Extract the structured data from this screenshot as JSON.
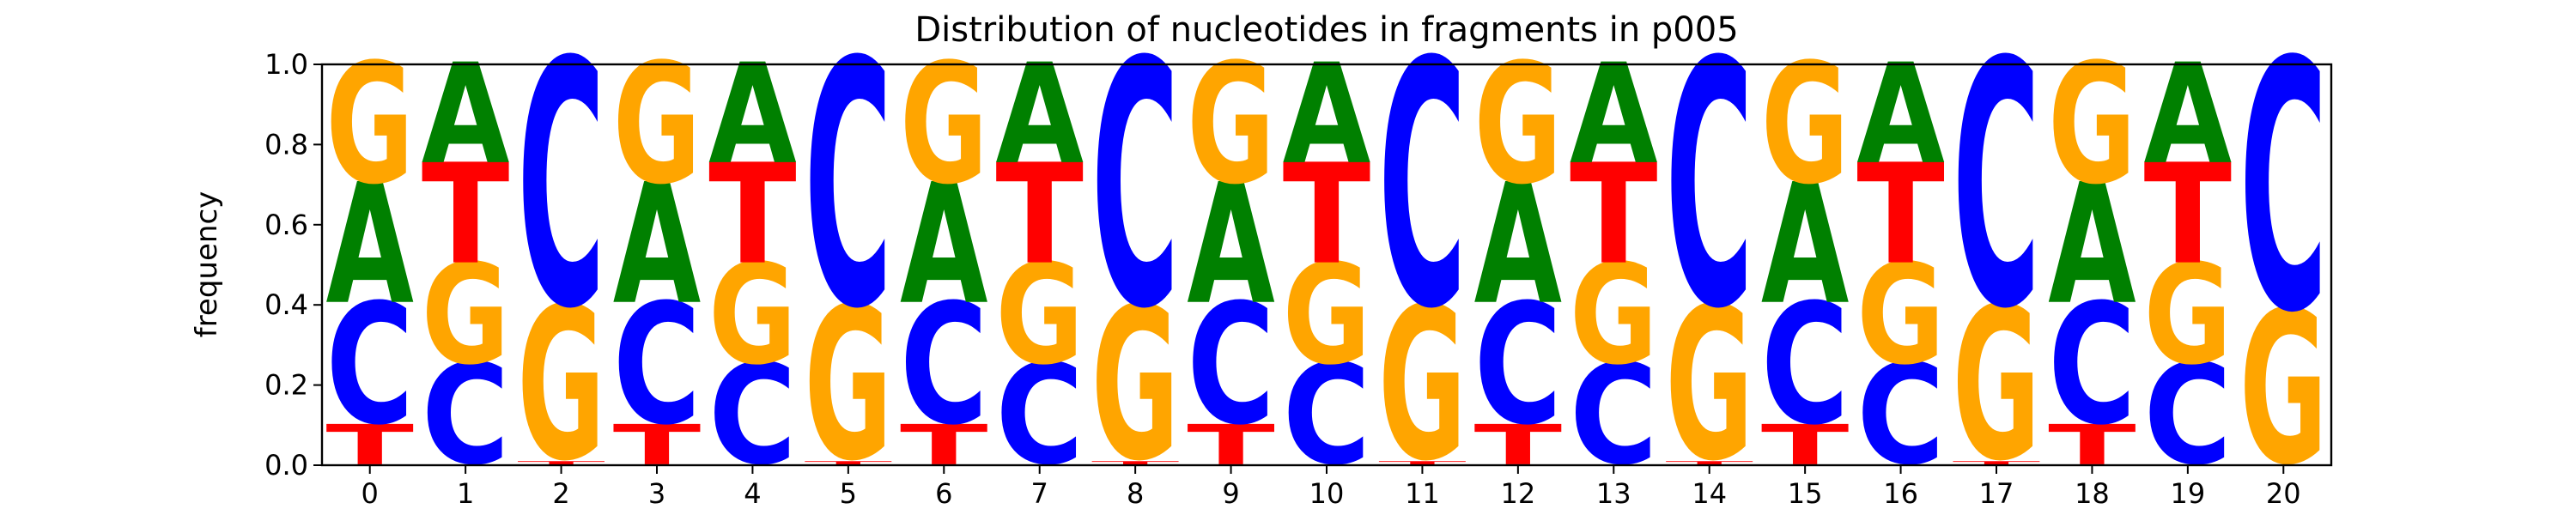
{
  "chart_data": {
    "type": "sequence-logo",
    "title": "Distribution of nucleotides in fragments in p005",
    "xlabel": "",
    "ylabel": "frequency",
    "ylim": [
      0,
      1
    ],
    "yticks": [
      "0.0",
      "0.2",
      "0.4",
      "0.6",
      "0.8",
      "1.0"
    ],
    "positions": [
      "0",
      "1",
      "2",
      "3",
      "4",
      "5",
      "6",
      "7",
      "8",
      "9",
      "10",
      "11",
      "12",
      "13",
      "14",
      "15",
      "16",
      "17",
      "18",
      "19",
      "20"
    ],
    "colors": {
      "A": "#008000",
      "C": "#0000ff",
      "G": "#ffa500",
      "T": "#ff0000"
    },
    "stacks": [
      [
        {
          "base": "T",
          "freq": 0.1
        },
        {
          "base": "C",
          "freq": 0.3
        },
        {
          "base": "A",
          "freq": 0.3
        },
        {
          "base": "G",
          "freq": 0.3
        }
      ],
      [
        {
          "base": "C",
          "freq": 0.25
        },
        {
          "base": "G",
          "freq": 0.25
        },
        {
          "base": "T",
          "freq": 0.25
        },
        {
          "base": "A",
          "freq": 0.25
        }
      ],
      [
        {
          "base": "T",
          "freq": 0.01
        },
        {
          "base": "G",
          "freq": 0.38
        },
        {
          "base": "C",
          "freq": 0.61
        }
      ],
      [
        {
          "base": "T",
          "freq": 0.1
        },
        {
          "base": "C",
          "freq": 0.3
        },
        {
          "base": "A",
          "freq": 0.3
        },
        {
          "base": "G",
          "freq": 0.3
        }
      ],
      [
        {
          "base": "C",
          "freq": 0.25
        },
        {
          "base": "G",
          "freq": 0.25
        },
        {
          "base": "T",
          "freq": 0.25
        },
        {
          "base": "A",
          "freq": 0.25
        }
      ],
      [
        {
          "base": "T",
          "freq": 0.01
        },
        {
          "base": "G",
          "freq": 0.38
        },
        {
          "base": "C",
          "freq": 0.61
        }
      ],
      [
        {
          "base": "T",
          "freq": 0.1
        },
        {
          "base": "C",
          "freq": 0.3
        },
        {
          "base": "A",
          "freq": 0.3
        },
        {
          "base": "G",
          "freq": 0.3
        }
      ],
      [
        {
          "base": "C",
          "freq": 0.25
        },
        {
          "base": "G",
          "freq": 0.25
        },
        {
          "base": "T",
          "freq": 0.25
        },
        {
          "base": "A",
          "freq": 0.25
        }
      ],
      [
        {
          "base": "T",
          "freq": 0.01
        },
        {
          "base": "G",
          "freq": 0.38
        },
        {
          "base": "C",
          "freq": 0.61
        }
      ],
      [
        {
          "base": "T",
          "freq": 0.1
        },
        {
          "base": "C",
          "freq": 0.3
        },
        {
          "base": "A",
          "freq": 0.3
        },
        {
          "base": "G",
          "freq": 0.3
        }
      ],
      [
        {
          "base": "C",
          "freq": 0.25
        },
        {
          "base": "G",
          "freq": 0.25
        },
        {
          "base": "T",
          "freq": 0.25
        },
        {
          "base": "A",
          "freq": 0.25
        }
      ],
      [
        {
          "base": "T",
          "freq": 0.01
        },
        {
          "base": "G",
          "freq": 0.38
        },
        {
          "base": "C",
          "freq": 0.61
        }
      ],
      [
        {
          "base": "T",
          "freq": 0.1
        },
        {
          "base": "C",
          "freq": 0.3
        },
        {
          "base": "A",
          "freq": 0.3
        },
        {
          "base": "G",
          "freq": 0.3
        }
      ],
      [
        {
          "base": "C",
          "freq": 0.25
        },
        {
          "base": "G",
          "freq": 0.25
        },
        {
          "base": "T",
          "freq": 0.25
        },
        {
          "base": "A",
          "freq": 0.25
        }
      ],
      [
        {
          "base": "T",
          "freq": 0.01
        },
        {
          "base": "G",
          "freq": 0.38
        },
        {
          "base": "C",
          "freq": 0.61
        }
      ],
      [
        {
          "base": "T",
          "freq": 0.1
        },
        {
          "base": "C",
          "freq": 0.3
        },
        {
          "base": "A",
          "freq": 0.3
        },
        {
          "base": "G",
          "freq": 0.3
        }
      ],
      [
        {
          "base": "C",
          "freq": 0.25
        },
        {
          "base": "G",
          "freq": 0.25
        },
        {
          "base": "T",
          "freq": 0.25
        },
        {
          "base": "A",
          "freq": 0.25
        }
      ],
      [
        {
          "base": "T",
          "freq": 0.01
        },
        {
          "base": "G",
          "freq": 0.38
        },
        {
          "base": "C",
          "freq": 0.61
        }
      ],
      [
        {
          "base": "T",
          "freq": 0.1
        },
        {
          "base": "C",
          "freq": 0.3
        },
        {
          "base": "A",
          "freq": 0.3
        },
        {
          "base": "G",
          "freq": 0.3
        }
      ],
      [
        {
          "base": "C",
          "freq": 0.25
        },
        {
          "base": "G",
          "freq": 0.25
        },
        {
          "base": "T",
          "freq": 0.25
        },
        {
          "base": "A",
          "freq": 0.25
        }
      ],
      [
        {
          "base": "G",
          "freq": 0.38
        },
        {
          "base": "C",
          "freq": 0.62
        }
      ]
    ]
  }
}
